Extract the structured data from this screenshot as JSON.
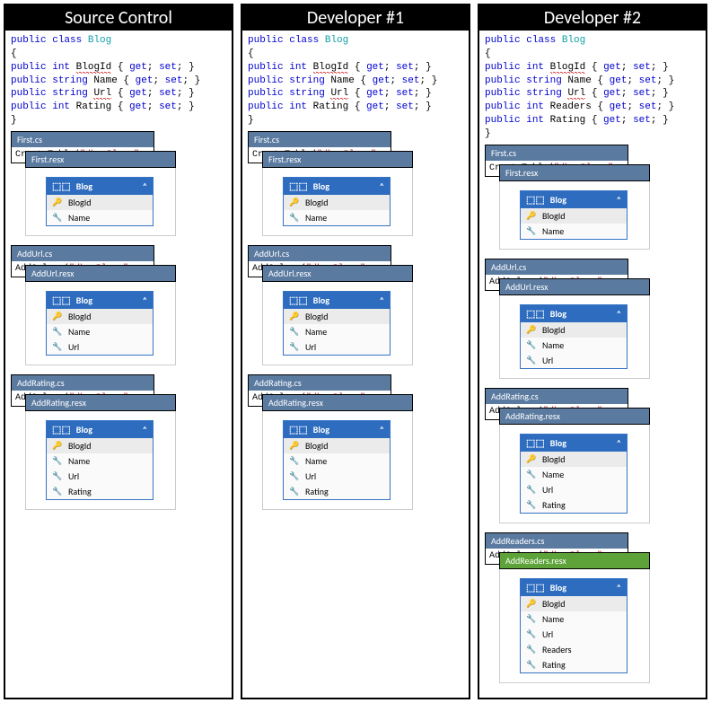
{
  "columns": [
    {
      "header": "Source Control",
      "code": {
        "lines": [
          {
            "tokens": [
              [
                "kw",
                "public"
              ],
              [
                "",
                ""
              ],
              [
                "kw",
                "class"
              ],
              [
                "",
                ""
              ],
              [
                "type",
                "Blog"
              ]
            ]
          },
          {
            "tokens": [
              [
                "",
                "{"
              ]
            ]
          },
          {
            "tokens": [
              [
                "",
                "  "
              ],
              [
                "kw",
                "public"
              ],
              [
                "",
                ""
              ],
              [
                "kw",
                "int"
              ],
              [
                "",
                ""
              ],
              [
                "sq",
                "BlogId"
              ],
              [
                "",
                " { "
              ],
              [
                "kw",
                "get"
              ],
              [
                "",
                "; "
              ],
              [
                "kw",
                "set"
              ],
              [
                "",
                "; }"
              ]
            ]
          },
          {
            "tokens": [
              [
                "",
                "  "
              ],
              [
                "kw",
                "public"
              ],
              [
                "",
                ""
              ],
              [
                "kw",
                "string"
              ],
              [
                "",
                " Name { "
              ],
              [
                "kw",
                "get"
              ],
              [
                "",
                "; "
              ],
              [
                "kw",
                "set"
              ],
              [
                "",
                "; }"
              ]
            ]
          },
          {
            "tokens": [
              [
                "",
                "  "
              ],
              [
                "kw",
                "public"
              ],
              [
                "",
                ""
              ],
              [
                "kw",
                "string"
              ],
              [
                "",
                ""
              ],
              [
                "sq",
                "Url"
              ],
              [
                "",
                " { "
              ],
              [
                "kw",
                "get"
              ],
              [
                "",
                "; "
              ],
              [
                "kw",
                "set"
              ],
              [
                "",
                "; }"
              ]
            ]
          },
          {
            "tokens": [
              [
                "",
                "  "
              ],
              [
                "kw",
                "public"
              ],
              [
                "",
                ""
              ],
              [
                "kw",
                "int"
              ],
              [
                "",
                " Rating { "
              ],
              [
                "kw",
                "get"
              ],
              [
                "",
                "; "
              ],
              [
                "kw",
                "set"
              ],
              [
                "",
                "; }"
              ]
            ]
          },
          {
            "tokens": [
              [
                "",
                "}"
              ]
            ]
          }
        ]
      },
      "migrations": [
        {
          "cs": "First.cs",
          "op": "CreateTable",
          "arg": "\"dbo.Blogs\"",
          "resx": "First.resx",
          "resxColor": "blue",
          "table": "Blog",
          "fields": [
            {
              "name": "BlogId",
              "key": true
            },
            {
              "name": "Name",
              "key": false
            }
          ]
        },
        {
          "cs": "AddUrl.cs",
          "op": "AddColumn",
          "arg": "\"dbo.Blogs\"",
          "resx": "AddUrl.resx",
          "resxColor": "blue",
          "table": "Blog",
          "fields": [
            {
              "name": "BlogId",
              "key": true
            },
            {
              "name": "Name",
              "key": false
            },
            {
              "name": "Url",
              "key": false
            }
          ]
        },
        {
          "cs": "AddRating.cs",
          "op": "AddColumn",
          "arg": "\"dbo.Blogs\"",
          "resx": "AddRating.resx",
          "resxColor": "blue",
          "table": "Blog",
          "fields": [
            {
              "name": "BlogId",
              "key": true
            },
            {
              "name": "Name",
              "key": false
            },
            {
              "name": "Url",
              "key": false
            },
            {
              "name": "Rating",
              "key": false
            }
          ]
        }
      ]
    },
    {
      "header": "Developer #1",
      "code": {
        "lines": [
          {
            "tokens": [
              [
                "kw",
                "public"
              ],
              [
                "",
                ""
              ],
              [
                "kw",
                "class"
              ],
              [
                "",
                ""
              ],
              [
                "type",
                "Blog"
              ]
            ]
          },
          {
            "tokens": [
              [
                "",
                "{"
              ]
            ]
          },
          {
            "tokens": [
              [
                "",
                "  "
              ],
              [
                "kw",
                "public"
              ],
              [
                "",
                ""
              ],
              [
                "kw",
                "int"
              ],
              [
                "",
                ""
              ],
              [
                "sq",
                "BlogId"
              ],
              [
                "",
                " { "
              ],
              [
                "kw",
                "get"
              ],
              [
                "",
                "; "
              ],
              [
                "kw",
                "set"
              ],
              [
                "",
                "; }"
              ]
            ]
          },
          {
            "tokens": [
              [
                "",
                "  "
              ],
              [
                "kw",
                "public"
              ],
              [
                "",
                ""
              ],
              [
                "kw",
                "string"
              ],
              [
                "",
                " Name { "
              ],
              [
                "kw",
                "get"
              ],
              [
                "",
                "; "
              ],
              [
                "kw",
                "set"
              ],
              [
                "",
                "; }"
              ]
            ]
          },
          {
            "tokens": [
              [
                "",
                "  "
              ],
              [
                "kw",
                "public"
              ],
              [
                "",
                ""
              ],
              [
                "kw",
                "string"
              ],
              [
                "",
                ""
              ],
              [
                "sq",
                "Url"
              ],
              [
                "",
                " { "
              ],
              [
                "kw",
                "get"
              ],
              [
                "",
                "; "
              ],
              [
                "kw",
                "set"
              ],
              [
                "",
                "; }"
              ]
            ]
          },
          {
            "tokens": [
              [
                "",
                "  "
              ],
              [
                "kw",
                "public"
              ],
              [
                "",
                ""
              ],
              [
                "kw",
                "int"
              ],
              [
                "",
                " Rating { "
              ],
              [
                "kw",
                "get"
              ],
              [
                "",
                "; "
              ],
              [
                "kw",
                "set"
              ],
              [
                "",
                "; }"
              ]
            ]
          },
          {
            "tokens": [
              [
                "",
                "}"
              ]
            ]
          }
        ]
      },
      "migrations": [
        {
          "cs": "First.cs",
          "op": "CreateTable",
          "arg": "\"dbo.Blogs\"",
          "resx": "First.resx",
          "resxColor": "blue",
          "table": "Blog",
          "fields": [
            {
              "name": "BlogId",
              "key": true
            },
            {
              "name": "Name",
              "key": false
            }
          ]
        },
        {
          "cs": "AddUrl.cs",
          "op": "AddColumn",
          "arg": "\"dbo.Blogs\"",
          "resx": "AddUrl.resx",
          "resxColor": "blue",
          "table": "Blog",
          "fields": [
            {
              "name": "BlogId",
              "key": true
            },
            {
              "name": "Name",
              "key": false
            },
            {
              "name": "Url",
              "key": false
            }
          ]
        },
        {
          "cs": "AddRating.cs",
          "op": "AddColumn",
          "arg": "\"dbo.Blogs\"",
          "resx": "AddRating.resx",
          "resxColor": "blue",
          "table": "Blog",
          "fields": [
            {
              "name": "BlogId",
              "key": true
            },
            {
              "name": "Name",
              "key": false
            },
            {
              "name": "Url",
              "key": false
            },
            {
              "name": "Rating",
              "key": false
            }
          ]
        }
      ]
    },
    {
      "header": "Developer #2",
      "code": {
        "lines": [
          {
            "tokens": [
              [
                "kw",
                "public"
              ],
              [
                "",
                ""
              ],
              [
                "kw",
                "class"
              ],
              [
                "",
                ""
              ],
              [
                "type",
                "Blog"
              ]
            ]
          },
          {
            "tokens": [
              [
                "",
                "{"
              ]
            ]
          },
          {
            "tokens": [
              [
                "",
                "  "
              ],
              [
                "kw",
                "public"
              ],
              [
                "",
                ""
              ],
              [
                "kw",
                "int"
              ],
              [
                "",
                ""
              ],
              [
                "sq",
                "BlogId"
              ],
              [
                "",
                " { "
              ],
              [
                "kw",
                "get"
              ],
              [
                "",
                "; "
              ],
              [
                "kw",
                "set"
              ],
              [
                "",
                "; }"
              ]
            ]
          },
          {
            "tokens": [
              [
                "",
                "  "
              ],
              [
                "kw",
                "public"
              ],
              [
                "",
                ""
              ],
              [
                "kw",
                "string"
              ],
              [
                "",
                " Name { "
              ],
              [
                "kw",
                "get"
              ],
              [
                "",
                "; "
              ],
              [
                "kw",
                "set"
              ],
              [
                "",
                "; }"
              ]
            ]
          },
          {
            "tokens": [
              [
                "",
                "  "
              ],
              [
                "kw",
                "public"
              ],
              [
                "",
                ""
              ],
              [
                "kw",
                "string"
              ],
              [
                "",
                ""
              ],
              [
                "sq",
                "Url"
              ],
              [
                "",
                " { "
              ],
              [
                "kw",
                "get"
              ],
              [
                "",
                "; "
              ],
              [
                "kw",
                "set"
              ],
              [
                "",
                "; }"
              ]
            ]
          },
          {
            "tokens": [
              [
                "",
                "  "
              ],
              [
                "kw",
                "public"
              ],
              [
                "",
                ""
              ],
              [
                "kw",
                "int"
              ],
              [
                "",
                " Readers { "
              ],
              [
                "kw",
                "get"
              ],
              [
                "",
                "; "
              ],
              [
                "kw",
                "set"
              ],
              [
                "",
                "; }"
              ]
            ]
          },
          {
            "tokens": [
              [
                "",
                "  "
              ],
              [
                "kw",
                "public"
              ],
              [
                "",
                ""
              ],
              [
                "kw",
                "int"
              ],
              [
                "",
                " Rating { "
              ],
              [
                "kw",
                "get"
              ],
              [
                "",
                "; "
              ],
              [
                "kw",
                "set"
              ],
              [
                "",
                "; }"
              ]
            ]
          },
          {
            "tokens": [
              [
                "",
                "}"
              ]
            ]
          }
        ]
      },
      "migrations": [
        {
          "cs": "First.cs",
          "op": "CreateTable",
          "arg": "\"dbo.Blogs\"",
          "resx": "First.resx",
          "resxColor": "blue",
          "table": "Blog",
          "fields": [
            {
              "name": "BlogId",
              "key": true
            },
            {
              "name": "Name",
              "key": false
            }
          ]
        },
        {
          "cs": "AddUrl.cs",
          "op": "AddColumn",
          "arg": "\"dbo.Blogs\"",
          "resx": "AddUrl.resx",
          "resxColor": "blue",
          "table": "Blog",
          "fields": [
            {
              "name": "BlogId",
              "key": true
            },
            {
              "name": "Name",
              "key": false
            },
            {
              "name": "Url",
              "key": false
            }
          ]
        },
        {
          "cs": "AddRating.cs",
          "op": "AddColumn",
          "arg": "\"dbo.Blogs\"",
          "resx": "AddRating.resx",
          "resxColor": "blue",
          "table": "Blog",
          "fields": [
            {
              "name": "BlogId",
              "key": true
            },
            {
              "name": "Name",
              "key": false
            },
            {
              "name": "Url",
              "key": false
            },
            {
              "name": "Rating",
              "key": false
            }
          ]
        },
        {
          "cs": "AddReaders.cs",
          "op": "AddColumn",
          "arg": "\"dbo.Blogs\"",
          "resx": "AddReaders.resx",
          "resxColor": "green",
          "table": "Blog",
          "fields": [
            {
              "name": "BlogId",
              "key": true
            },
            {
              "name": "Name",
              "key": false
            },
            {
              "name": "Url",
              "key": false
            },
            {
              "name": "Readers",
              "key": false
            },
            {
              "name": "Rating",
              "key": false
            }
          ]
        }
      ]
    }
  ]
}
